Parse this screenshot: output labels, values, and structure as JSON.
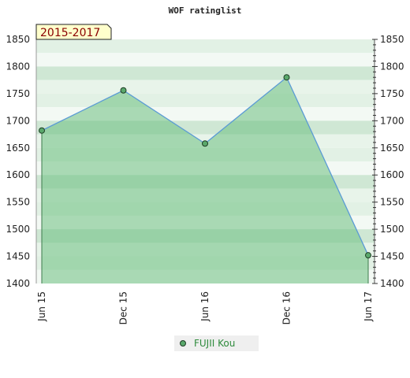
{
  "chart_data": {
    "type": "area",
    "title": "WOF ratinglist",
    "period_label": "2015-2017",
    "x": [
      "Jun 15",
      "Dec 15",
      "Jun 16",
      "Dec 16",
      "Jun 17"
    ],
    "series": [
      {
        "name": "FUJII Kou",
        "values": [
          1682,
          1756,
          1658,
          1780,
          1452
        ]
      }
    ],
    "ylim": [
      1400,
      1850
    ],
    "y_ticks": [
      "1400",
      "1450",
      "1500",
      "1550",
      "1600",
      "1650",
      "1700",
      "1750",
      "1800",
      "1850"
    ],
    "grid": false,
    "legend": "bottom-center",
    "colors": {
      "line": "#5b9bd5",
      "fill": "#6cbf7f",
      "marker": "#5aa86c",
      "marker_stroke": "#1e3d24",
      "period_bg": "#ffffcc"
    }
  }
}
